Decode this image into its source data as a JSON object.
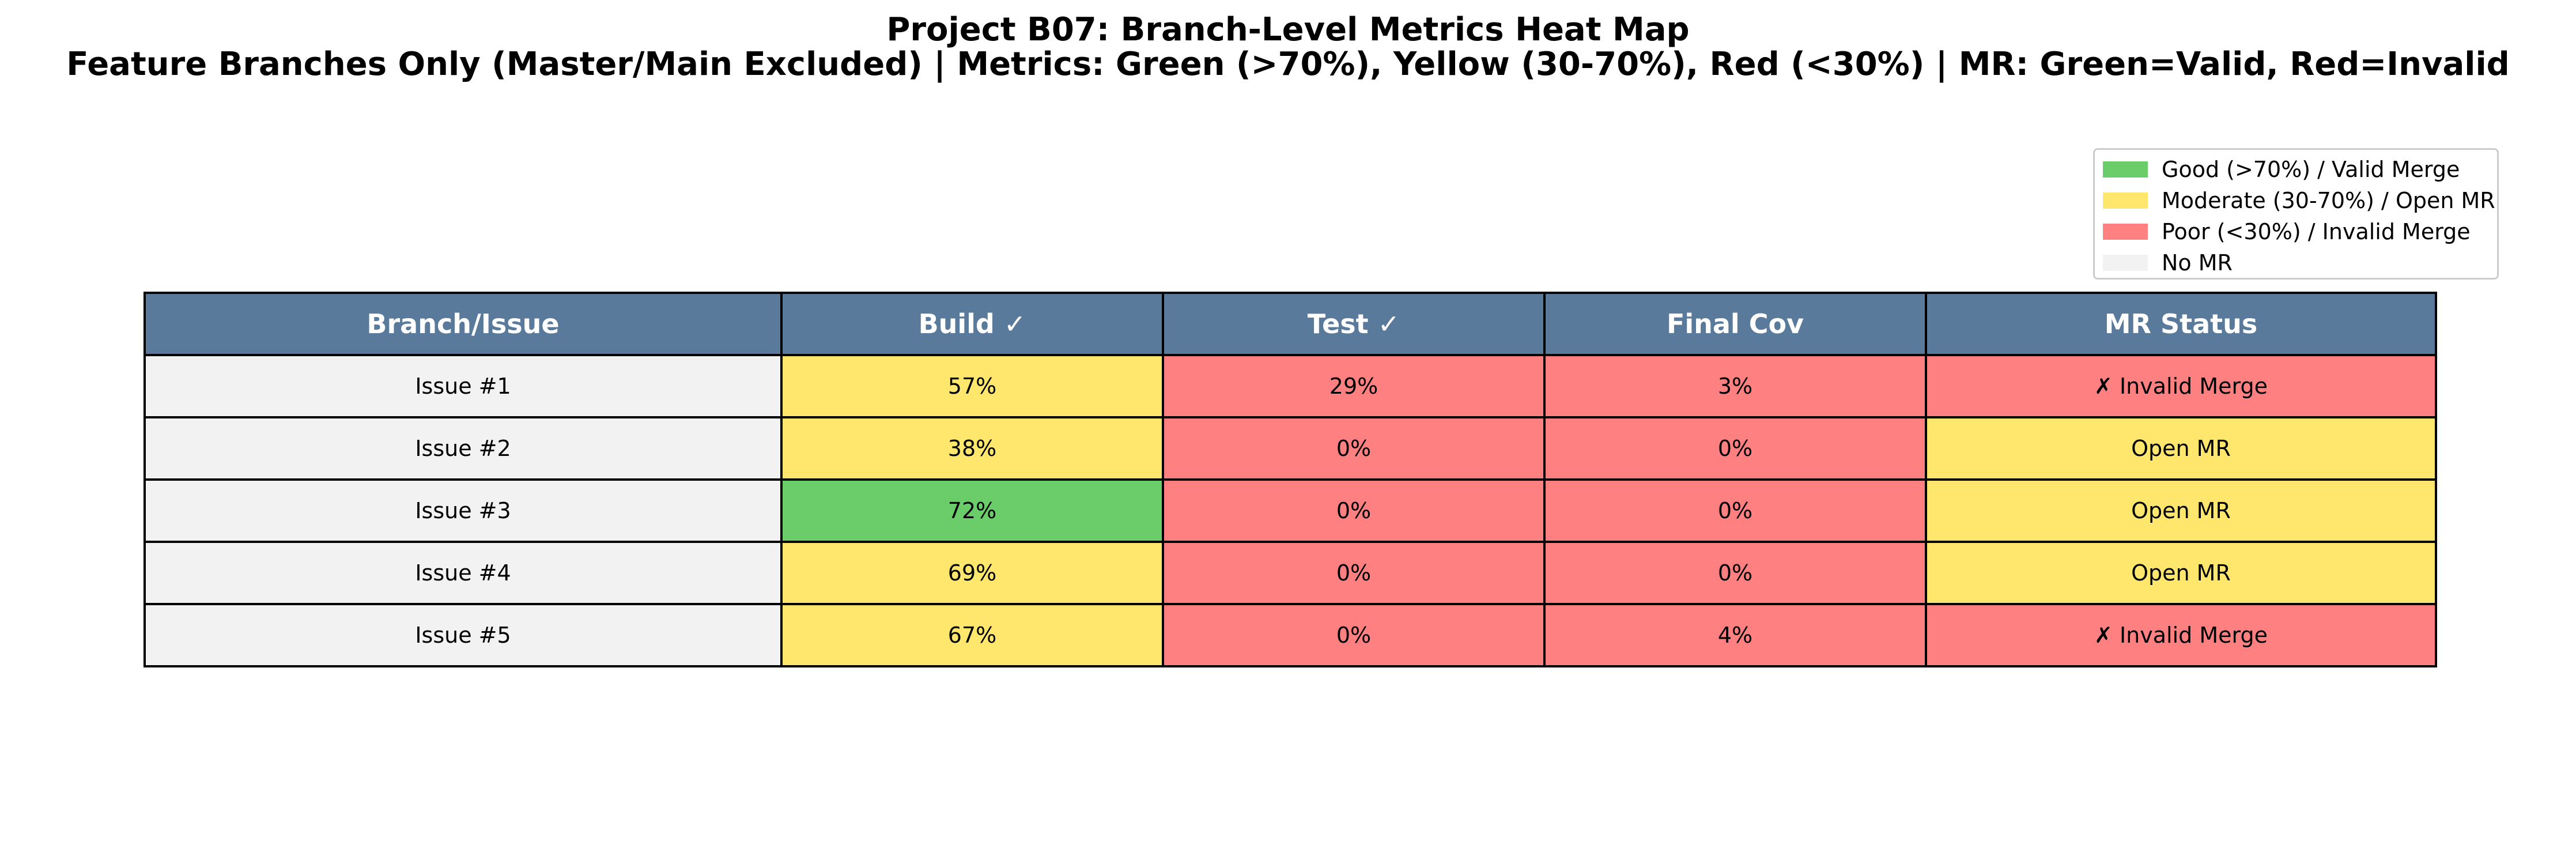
{
  "colors": {
    "good": "#6acd6a",
    "moderate": "#ffe66d",
    "poor": "#ff8080",
    "none": "#f2f2f2",
    "header": "#5a7a9c"
  },
  "chart_data": {
    "type": "table",
    "title": "Project B07: Branch-Level Metrics Heat Map",
    "subtitle": "Feature Branches Only (Master/Main Excluded) | Metrics: Green (>70%), Yellow (30-70%), Red (<30%) | MR: Green=Valid, Red=Invalid",
    "legend_position": "top-right",
    "legend": [
      {
        "label": "Good (>70%) / Valid Merge",
        "color_key": "good"
      },
      {
        "label": "Moderate (30-70%) / Open MR",
        "color_key": "moderate"
      },
      {
        "label": "Poor (<30%) / Invalid Merge",
        "color_key": "poor"
      },
      {
        "label": "No MR",
        "color_key": "none"
      }
    ],
    "columns": [
      "Branch/Issue",
      "Build ✓",
      "Test ✓",
      "Final Cov",
      "MR Status"
    ],
    "rows": [
      {
        "branch": "Issue #1",
        "build": 57,
        "test": 29,
        "cov": 3,
        "mr": "✗ Invalid Merge",
        "mr_level": "poor"
      },
      {
        "branch": "Issue #2",
        "build": 38,
        "test": 0,
        "cov": 0,
        "mr": "Open MR",
        "mr_level": "moderate"
      },
      {
        "branch": "Issue #3",
        "build": 72,
        "test": 0,
        "cov": 0,
        "mr": "Open MR",
        "mr_level": "moderate"
      },
      {
        "branch": "Issue #4",
        "build": 69,
        "test": 0,
        "cov": 0,
        "mr": "Open MR",
        "mr_level": "moderate"
      },
      {
        "branch": "Issue #5",
        "build": 67,
        "test": 0,
        "cov": 4,
        "mr": "✗ Invalid Merge",
        "mr_level": "poor"
      }
    ]
  }
}
